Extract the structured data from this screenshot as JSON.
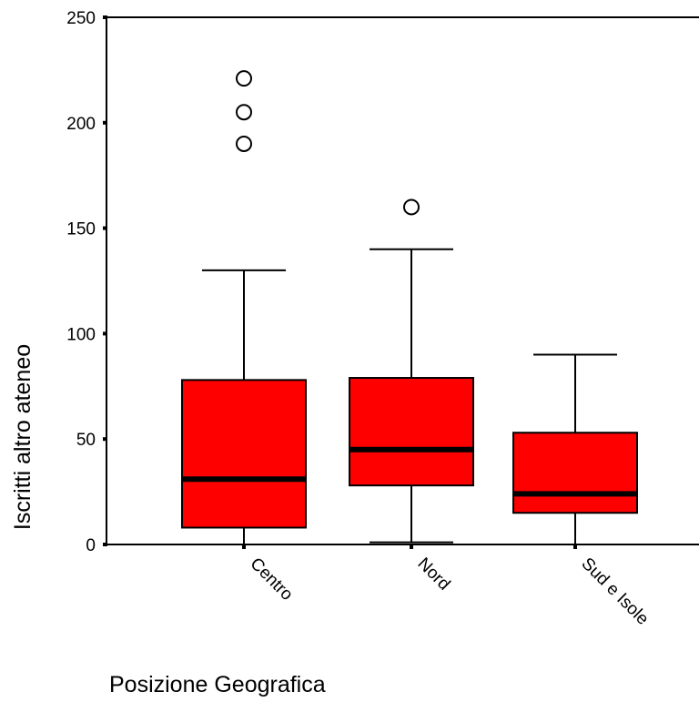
{
  "chart_data": {
    "type": "boxplot",
    "title": "",
    "xlabel": "Posizione Geografica",
    "ylabel": "Iscritti altro ateneo",
    "ylim": [
      0,
      250
    ],
    "yticks": [
      0,
      50,
      100,
      150,
      200,
      250
    ],
    "yticks_text": [
      "0",
      "50",
      "100",
      "150",
      "200",
      "250"
    ],
    "grid": false,
    "box_color": "#ff0000",
    "categories": [
      "Centro",
      "Nord",
      "Sud e Isole"
    ],
    "boxes": [
      {
        "category": "Centro",
        "whisker_low": 0,
        "q1": 8,
        "median": 31,
        "q3": 78,
        "whisker_high": 130,
        "outliers": [
          190,
          205,
          221
        ]
      },
      {
        "category": "Nord",
        "whisker_low": 1,
        "q1": 28,
        "median": 45,
        "q3": 79,
        "whisker_high": 140,
        "outliers": [
          160
        ]
      },
      {
        "category": "Sud e Isole",
        "whisker_low": 0,
        "q1": 15,
        "median": 24,
        "q3": 53,
        "whisker_high": 90,
        "outliers": []
      }
    ]
  }
}
